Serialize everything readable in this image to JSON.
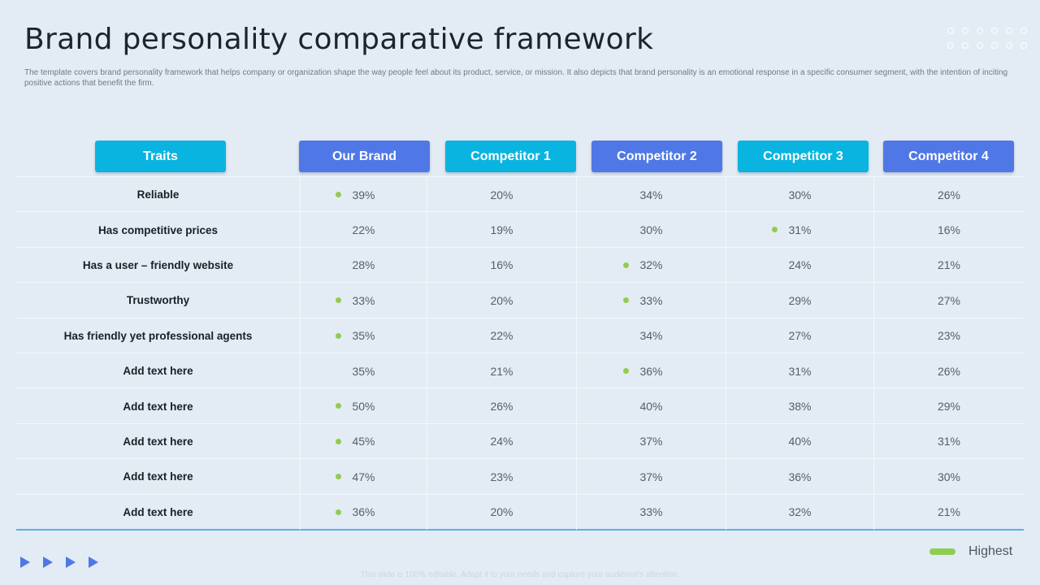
{
  "slide": {
    "title": "Brand personality comparative framework",
    "subtitle": "The template  covers brand personality framework that helps company or organization shape the  way people feel about its product, service, or mission. It  also depicts that brand personality is an emotional  response in a specific consumer segment, with the intention  of inciting positive actions that benefit the  firm.",
    "footer": "This slide is 100% editable. Adapt it to your needs and capture your audience's attention."
  },
  "colors": {
    "cyan": "#0ab4e0",
    "blue": "#4f78e6",
    "highlight": "#8fcd52",
    "background": "#e3ebf4"
  },
  "table": {
    "headers": [
      "Traits",
      "Our Brand",
      "Competitor 1",
      "Competitor 2",
      "Competitor 3",
      "Competitor 4"
    ],
    "rows": [
      {
        "trait": "Reliable",
        "values": [
          "39%",
          "20%",
          "34%",
          "30%",
          "26%"
        ],
        "highest": [
          true,
          false,
          false,
          false,
          false
        ]
      },
      {
        "trait": "Has competitive  prices",
        "values": [
          "22%",
          "19%",
          "30%",
          "31%",
          "16%"
        ],
        "highest": [
          false,
          false,
          false,
          true,
          false
        ]
      },
      {
        "trait": "Has a user – friendly website",
        "values": [
          "28%",
          "16%",
          "32%",
          "24%",
          "21%"
        ],
        "highest": [
          false,
          false,
          true,
          false,
          false
        ]
      },
      {
        "trait": "Trustworthy",
        "values": [
          "33%",
          "20%",
          "33%",
          "29%",
          "27%"
        ],
        "highest": [
          true,
          false,
          true,
          false,
          false
        ]
      },
      {
        "trait": "Has friendly yet professional  agents",
        "values": [
          "35%",
          "22%",
          "34%",
          "27%",
          "23%"
        ],
        "highest": [
          true,
          false,
          false,
          false,
          false
        ]
      },
      {
        "trait": "Add text here",
        "values": [
          "35%",
          "21%",
          "36%",
          "31%",
          "26%"
        ],
        "highest": [
          false,
          false,
          true,
          false,
          false
        ]
      },
      {
        "trait": "Add text here",
        "values": [
          "50%",
          "26%",
          "40%",
          "38%",
          "29%"
        ],
        "highest": [
          true,
          false,
          false,
          false,
          false
        ]
      },
      {
        "trait": "Add text here",
        "values": [
          "45%",
          "24%",
          "37%",
          "40%",
          "31%"
        ],
        "highest": [
          true,
          false,
          false,
          false,
          false
        ]
      },
      {
        "trait": "Add text here",
        "values": [
          "47%",
          "23%",
          "37%",
          "36%",
          "30%"
        ],
        "highest": [
          true,
          false,
          false,
          false,
          false
        ]
      },
      {
        "trait": "Add text here",
        "values": [
          "36%",
          "20%",
          "33%",
          "32%",
          "21%"
        ],
        "highest": [
          true,
          false,
          false,
          false,
          false
        ]
      }
    ]
  },
  "legend": {
    "label": "Highest"
  }
}
